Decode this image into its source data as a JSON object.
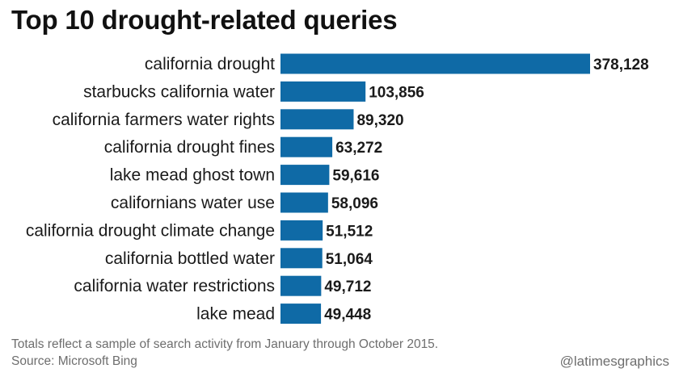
{
  "chart_data": {
    "type": "bar",
    "orientation": "horizontal",
    "title": "Top 10 drought-related queries",
    "categories": [
      "california drought",
      "starbucks california water",
      "california farmers water rights",
      "california drought fines",
      "lake mead ghost town",
      "californians water use",
      "california drought climate change",
      "california bottled water",
      "california water restrictions",
      "lake mead"
    ],
    "values": [
      378128,
      103856,
      89320,
      63272,
      59616,
      58096,
      51512,
      51064,
      49712,
      49448
    ],
    "value_labels": [
      "378,128",
      "103,856",
      "89,320",
      "63,272",
      "59,616",
      "58,096",
      "51,512",
      "51,064",
      "49,712",
      "49,448"
    ],
    "xlim": [
      0,
      378128
    ],
    "bar_color": "#0f6aa6",
    "grid": false,
    "legend": "none"
  },
  "footer": {
    "note_line1": "Totals reflect a sample of search activity from January through October 2015.",
    "note_line2": "Source: Microsoft Bing",
    "credit": "@latimesgraphics"
  }
}
